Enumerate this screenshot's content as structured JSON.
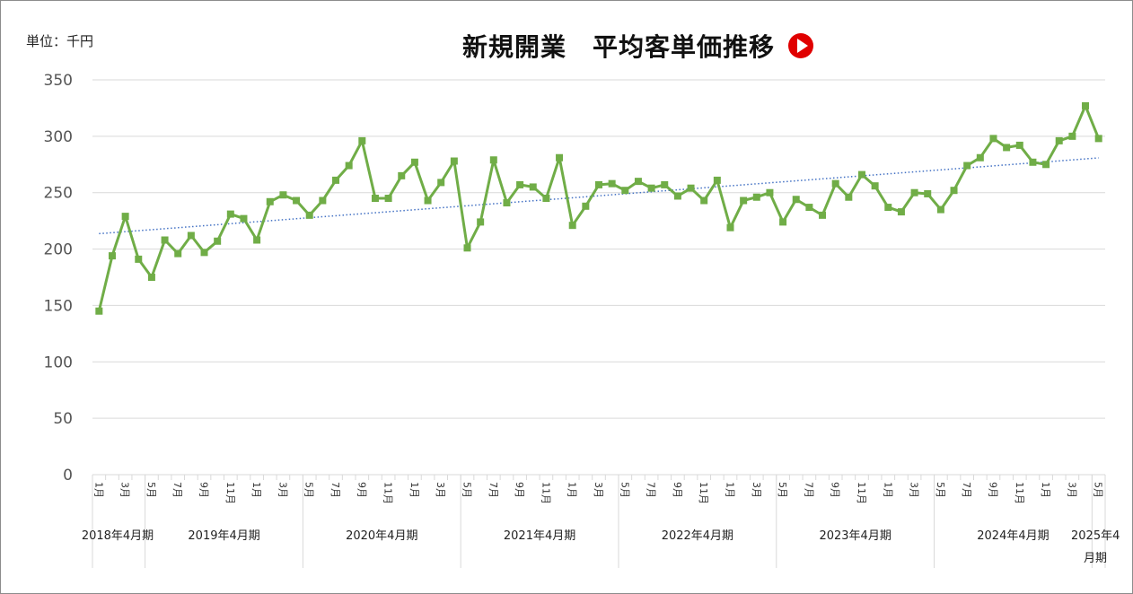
{
  "unit_label": "単位：千円",
  "icon": "play-icon",
  "colors": {
    "series": "#70AD47",
    "trend": "#4472C4",
    "grid": "#D9D9D9",
    "icon": "#E00000"
  },
  "chart_data": {
    "type": "line",
    "title": "新規開業　平均客単価推移",
    "ylim": [
      0,
      350
    ],
    "yticks": [
      "0",
      "50",
      "100",
      "150",
      "200",
      "250",
      "300",
      "350"
    ],
    "grid": true,
    "trendline": {
      "type": "linear",
      "style": "dotted"
    },
    "tick_labels": [
      "1月",
      "3月",
      "5月",
      "7月",
      "9月",
      "11月",
      "1月",
      "3月",
      "5月",
      "7月",
      "9月",
      "11月",
      "1月",
      "3月",
      "5月",
      "7月",
      "9月",
      "11月",
      "1月",
      "3月",
      "5月",
      "7月",
      "9月",
      "11月",
      "1月",
      "3月",
      "5月",
      "7月",
      "9月",
      "11月",
      "1月",
      "3月",
      "5月",
      "7月",
      "9月",
      "11月",
      "1月",
      "3月",
      "5月"
    ],
    "groups": [
      {
        "label": "2018年4月期",
        "count": 4
      },
      {
        "label": "2019年4月期",
        "count": 12
      },
      {
        "label": "2020年4月期",
        "count": 12
      },
      {
        "label": "2021年4月期",
        "count": 12
      },
      {
        "label": "2022年4月期",
        "count": 12
      },
      {
        "label": "2023年4月期",
        "count": 12
      },
      {
        "label": "2024年4月期",
        "count": 12
      },
      {
        "label": "2025年4月期",
        "count": 1
      }
    ],
    "series": [
      {
        "values": [
          145,
          194,
          229,
          191,
          175,
          208,
          196,
          212,
          197,
          207,
          231,
          227,
          208,
          242,
          248,
          243,
          230,
          243,
          261,
          274,
          296,
          245,
          245,
          265,
          277,
          243,
          259,
          278,
          201,
          224,
          279,
          241,
          257,
          255,
          245,
          281,
          221,
          238,
          257,
          258,
          252,
          260,
          254,
          257,
          247,
          254,
          243,
          261,
          219,
          243,
          246,
          250,
          224,
          244,
          237,
          230,
          258,
          246,
          266,
          256,
          237,
          233,
          250,
          249,
          235,
          252,
          274,
          281,
          298,
          290,
          292,
          277,
          275,
          296,
          300,
          327,
          298
        ]
      }
    ]
  }
}
